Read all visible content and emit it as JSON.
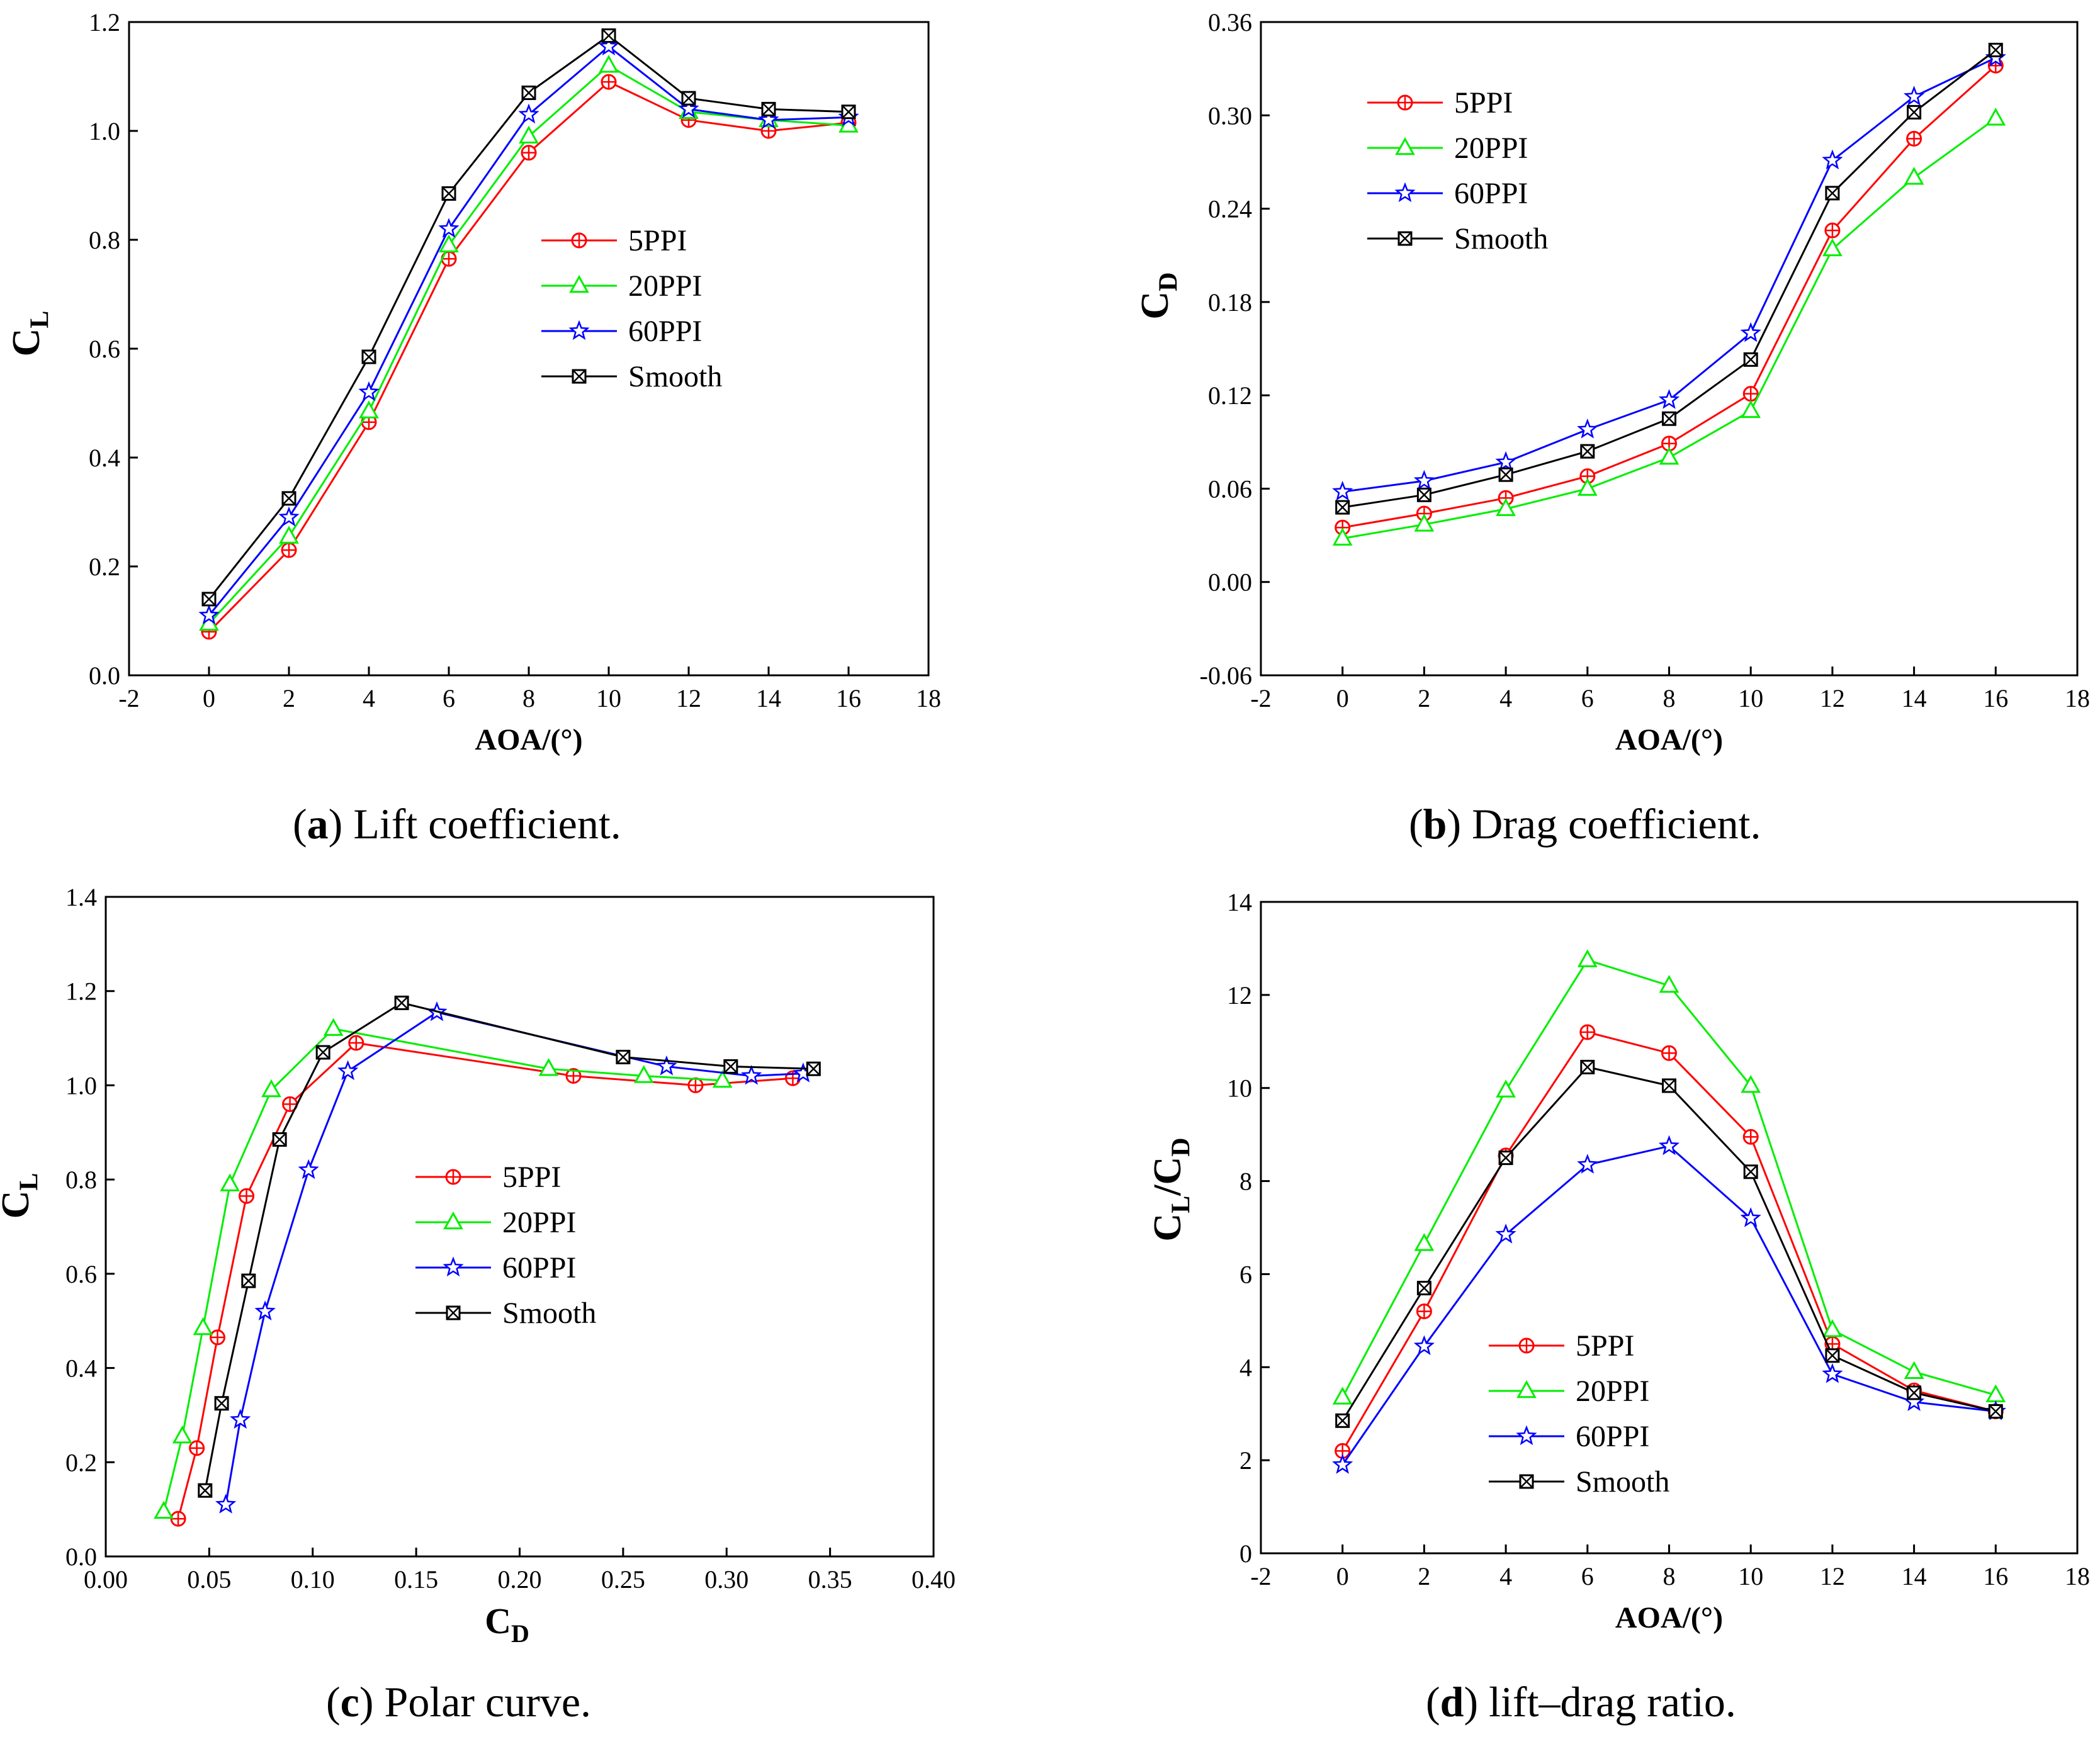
{
  "figure": {
    "captions": [
      {
        "letter": "a",
        "text": "Lift coefficient."
      },
      {
        "letter": "b",
        "text": "Drag coefficient."
      },
      {
        "letter": "c",
        "text": "Polar curve."
      },
      {
        "letter": "d",
        "text": "lift–drag ratio."
      }
    ]
  },
  "colors": {
    "5PPI": "#ff0000",
    "20PPI": "#00ee00",
    "60PPI": "#0000ff",
    "Smooth": "#000000"
  },
  "chart_data": [
    {
      "id": "a",
      "type": "line",
      "xlabel": "AOA/(°)",
      "ylabel_main": "C",
      "ylabel_sub": "L",
      "xlim": [
        -2,
        18
      ],
      "ylim": [
        0.0,
        1.2
      ],
      "xticks": [
        -2,
        0,
        2,
        4,
        6,
        8,
        10,
        12,
        14,
        16,
        18
      ],
      "xtick_labels": [
        "-2",
        "0",
        "2",
        "4",
        "6",
        "8",
        "10",
        "12",
        "14",
        "16",
        "18"
      ],
      "yticks": [
        0.0,
        0.2,
        0.4,
        0.6,
        0.8,
        1.0,
        1.2
      ],
      "ytick_labels": [
        "0.0",
        "0.2",
        "0.4",
        "0.6",
        "0.8",
        "1.0",
        "1.2"
      ],
      "legend": "center",
      "x": [
        0,
        2,
        4,
        6,
        8,
        10,
        12,
        14,
        16
      ],
      "series": [
        {
          "name": "5PPI",
          "marker": "circle-plus",
          "values": [
            0.08,
            0.23,
            0.465,
            0.765,
            0.96,
            1.09,
            1.02,
            1.0,
            1.015
          ]
        },
        {
          "name": "20PPI",
          "marker": "triangle",
          "values": [
            0.095,
            0.255,
            0.485,
            0.79,
            0.99,
            1.12,
            1.035,
            1.02,
            1.01
          ]
        },
        {
          "name": "60PPI",
          "marker": "star",
          "values": [
            0.11,
            0.29,
            0.52,
            0.82,
            1.03,
            1.155,
            1.04,
            1.02,
            1.025
          ]
        },
        {
          "name": "Smooth",
          "marker": "box-x",
          "values": [
            0.14,
            0.325,
            0.585,
            0.885,
            1.07,
            1.175,
            1.06,
            1.04,
            1.035
          ]
        }
      ]
    },
    {
      "id": "b",
      "type": "line",
      "xlabel": "AOA/(°)",
      "ylabel_main": "C",
      "ylabel_sub": "D",
      "xlim": [
        -2,
        18
      ],
      "ylim": [
        -0.06,
        0.36
      ],
      "xticks": [
        -2,
        0,
        2,
        4,
        6,
        8,
        10,
        12,
        14,
        16,
        18
      ],
      "xtick_labels": [
        "-2",
        "0",
        "2",
        "4",
        "6",
        "8",
        "10",
        "12",
        "14",
        "16",
        "18"
      ],
      "yticks": [
        -0.06,
        0.0,
        0.06,
        0.12,
        0.18,
        0.24,
        0.3,
        0.36
      ],
      "ytick_labels": [
        "-0.06",
        "0.00",
        "0.06",
        "0.12",
        "0.18",
        "0.24",
        "0.30",
        "0.36"
      ],
      "legend": "top-left",
      "x": [
        0,
        2,
        4,
        6,
        8,
        10,
        12,
        14,
        16
      ],
      "series": [
        {
          "name": "5PPI",
          "marker": "circle-plus",
          "values": [
            0.035,
            0.044,
            0.054,
            0.068,
            0.089,
            0.121,
            0.226,
            0.285,
            0.332
          ]
        },
        {
          "name": "20PPI",
          "marker": "triangle",
          "values": [
            0.028,
            0.037,
            0.047,
            0.06,
            0.08,
            0.11,
            0.214,
            0.26,
            0.298
          ]
        },
        {
          "name": "60PPI",
          "marker": "star",
          "values": [
            0.058,
            0.065,
            0.077,
            0.098,
            0.117,
            0.16,
            0.271,
            0.312,
            0.337
          ]
        },
        {
          "name": "Smooth",
          "marker": "box-x",
          "values": [
            0.048,
            0.056,
            0.069,
            0.084,
            0.105,
            0.143,
            0.25,
            0.302,
            0.342
          ]
        }
      ]
    },
    {
      "id": "c",
      "type": "line",
      "xlabel_main": "C",
      "xlabel_sub": "D",
      "ylabel_main": "C",
      "ylabel_sub": "L",
      "xlim": [
        0.0,
        0.4
      ],
      "ylim": [
        0.0,
        1.4
      ],
      "xticks": [
        0.0,
        0.05,
        0.1,
        0.15,
        0.2,
        0.25,
        0.3,
        0.35,
        0.4
      ],
      "xtick_labels": [
        "0.00",
        "0.05",
        "0.10",
        "0.15",
        "0.20",
        "0.25",
        "0.30",
        "0.35",
        "0.40"
      ],
      "yticks": [
        0.0,
        0.2,
        0.4,
        0.6,
        0.8,
        1.0,
        1.2,
        1.4
      ],
      "ytick_labels": [
        "0.0",
        "0.2",
        "0.4",
        "0.6",
        "0.8",
        "1.0",
        "1.2",
        "1.4"
      ],
      "legend": "center",
      "series": [
        {
          "name": "5PPI",
          "marker": "circle-plus",
          "x": [
            0.035,
            0.044,
            0.054,
            0.068,
            0.089,
            0.121,
            0.226,
            0.285,
            0.332
          ],
          "y": [
            0.08,
            0.23,
            0.465,
            0.765,
            0.96,
            1.09,
            1.02,
            1.0,
            1.015
          ]
        },
        {
          "name": "20PPI",
          "marker": "triangle",
          "x": [
            0.028,
            0.037,
            0.047,
            0.06,
            0.08,
            0.11,
            0.214,
            0.26,
            0.298
          ],
          "y": [
            0.095,
            0.255,
            0.485,
            0.79,
            0.99,
            1.12,
            1.035,
            1.02,
            1.01
          ]
        },
        {
          "name": "60PPI",
          "marker": "star",
          "x": [
            0.058,
            0.065,
            0.077,
            0.098,
            0.117,
            0.16,
            0.271,
            0.312,
            0.337
          ],
          "y": [
            0.11,
            0.29,
            0.52,
            0.82,
            1.03,
            1.155,
            1.04,
            1.02,
            1.025
          ]
        },
        {
          "name": "Smooth",
          "marker": "box-x",
          "x": [
            0.048,
            0.056,
            0.069,
            0.084,
            0.105,
            0.143,
            0.25,
            0.302,
            0.342
          ],
          "y": [
            0.14,
            0.325,
            0.585,
            0.885,
            1.07,
            1.175,
            1.06,
            1.04,
            1.035
          ]
        }
      ]
    },
    {
      "id": "d",
      "type": "line",
      "xlabel": "AOA/(°)",
      "ylabel_main": "C",
      "ylabel_sub": "L",
      "ylabel_main2": "/C",
      "ylabel_sub2": "D",
      "xlim": [
        -2,
        18
      ],
      "ylim": [
        0,
        14
      ],
      "xticks": [
        -2,
        0,
        2,
        4,
        6,
        8,
        10,
        12,
        14,
        16,
        18
      ],
      "xtick_labels": [
        "-2",
        "0",
        "2",
        "4",
        "6",
        "8",
        "10",
        "12",
        "14",
        "16",
        "18"
      ],
      "yticks": [
        0,
        2,
        4,
        6,
        8,
        10,
        12,
        14
      ],
      "ytick_labels": [
        "0",
        "2",
        "4",
        "6",
        "8",
        "10",
        "12",
        "14"
      ],
      "legend": "bottom-center",
      "x": [
        0,
        2,
        4,
        6,
        8,
        10,
        12,
        14,
        16
      ],
      "series": [
        {
          "name": "5PPI",
          "marker": "circle-plus",
          "values": [
            2.2,
            5.2,
            8.55,
            11.2,
            10.75,
            8.95,
            4.5,
            3.5,
            3.05
          ]
        },
        {
          "name": "20PPI",
          "marker": "triangle",
          "values": [
            3.35,
            6.65,
            9.95,
            12.75,
            12.2,
            10.05,
            4.8,
            3.9,
            3.4
          ]
        },
        {
          "name": "60PPI",
          "marker": "star",
          "values": [
            1.9,
            4.45,
            6.85,
            8.35,
            8.75,
            7.2,
            3.85,
            3.25,
            3.05
          ]
        },
        {
          "name": "Smooth",
          "marker": "box-x",
          "values": [
            2.85,
            5.7,
            8.5,
            10.45,
            10.05,
            8.2,
            4.25,
            3.45,
            3.05
          ]
        }
      ]
    }
  ]
}
